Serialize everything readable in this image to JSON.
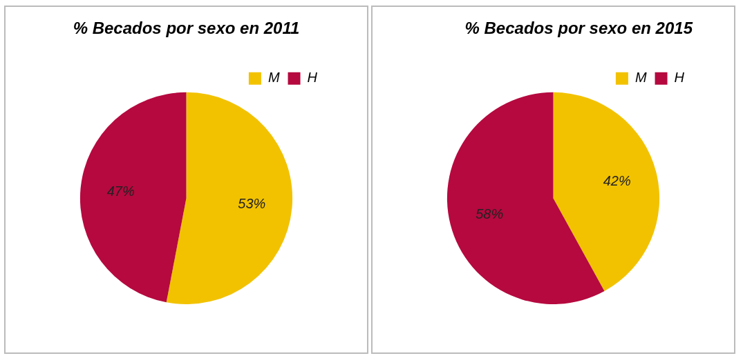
{
  "chart_data": [
    {
      "type": "pie",
      "title": "% Becados por sexo en 2011",
      "categories": [
        "M",
        "H"
      ],
      "values": [
        53,
        47
      ],
      "colors": [
        "#f2c200",
        "#b5093f"
      ],
      "value_labels": [
        "53%",
        "47%"
      ],
      "legend": "top right"
    },
    {
      "type": "pie",
      "title": "% Becados por sexo en 2015",
      "categories": [
        "M",
        "H"
      ],
      "values": [
        42,
        58
      ],
      "colors": [
        "#f2c200",
        "#b5093f"
      ],
      "value_labels": [
        "42%",
        "58%"
      ],
      "legend": "top right"
    }
  ]
}
